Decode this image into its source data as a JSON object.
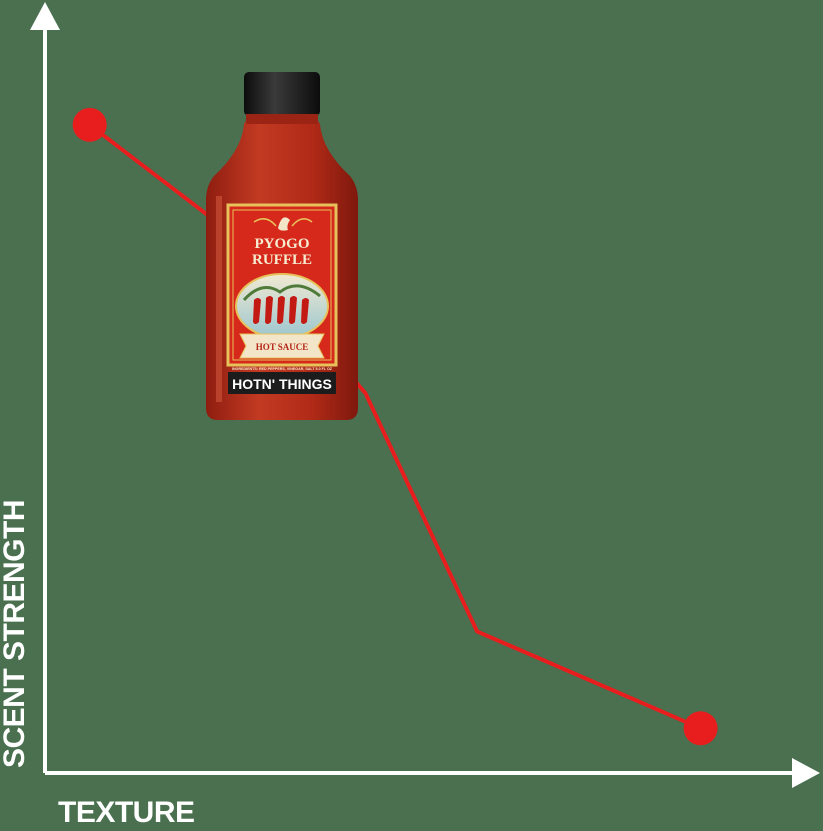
{
  "chart_data": {
    "type": "line",
    "title": "",
    "xlabel": "TEXTURE",
    "ylabel": "SCENT STRENGTH",
    "xlim": [
      0,
      100
    ],
    "ylim": [
      0,
      100
    ],
    "grid": false,
    "legend": "none",
    "series": [
      {
        "color": "#e81e1e",
        "points": [
          {
            "x": 6,
            "y": 87
          },
          {
            "x": 23,
            "y": 74
          },
          {
            "x": 43,
            "y": 51
          },
          {
            "x": 58,
            "y": 19
          },
          {
            "x": 88,
            "y": 6
          }
        ],
        "markers": [
          0,
          4
        ]
      }
    ]
  },
  "product": {
    "brand_line1": "PYOGO",
    "brand_line2": "RUFFLE",
    "ribbon": "HOT SAUCE",
    "small_print": "INGREDIENTS: RED PEPPERS, VINEGAR, SALT 5.0 FL OZ",
    "name": "HOTN' THINGS"
  },
  "colors": {
    "background": "#4a7050",
    "axis": "#ffffff",
    "line": "#e81e1e",
    "bottle": "#b42a17",
    "cap": "#1a1a1a",
    "label": "#d6291c",
    "label_border": "#e7c25a"
  }
}
